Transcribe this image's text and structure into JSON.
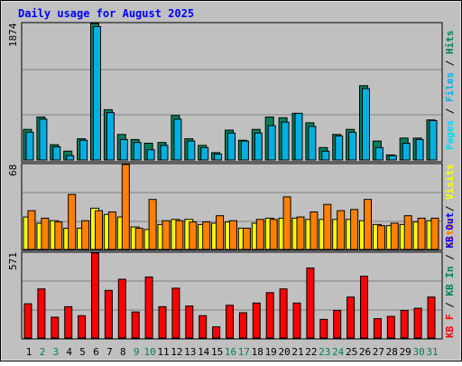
{
  "title": "Daily usage for August 2025",
  "colors": {
    "background": "#C0C0C0",
    "title": "#0000FF",
    "hits": "#00805C",
    "files": "#00B0E0",
    "pages": "#00D8F8",
    "visits": "#FFFF00",
    "sites": "#FF8000",
    "kbin": "#00805C",
    "kbout": "#0000FF",
    "kbf": "#FF0000"
  },
  "chart_data": [
    {
      "type": "bar",
      "name": "hits-files-pages",
      "categories": [
        "1",
        "2",
        "3",
        "4",
        "5",
        "6",
        "7",
        "8",
        "9",
        "10",
        "11",
        "12",
        "13",
        "14",
        "15",
        "16",
        "17",
        "18",
        "19",
        "20",
        "21",
        "22",
        "23",
        "24",
        "25",
        "26",
        "27",
        "28",
        "29",
        "30",
        "31"
      ],
      "ymax_label": "1874",
      "ylim": [
        0,
        1874
      ],
      "series": [
        {
          "name": "Hits",
          "values": [
            420,
            590,
            210,
            120,
            290,
            1874,
            690,
            350,
            280,
            230,
            240,
            610,
            290,
            200,
            100,
            410,
            270,
            420,
            590,
            580,
            640,
            510,
            170,
            350,
            420,
            1020,
            260,
            70,
            300,
            300,
            550
          ]
        },
        {
          "name": "Files",
          "values": [
            380,
            560,
            180,
            60,
            270,
            1830,
            650,
            280,
            240,
            140,
            200,
            560,
            260,
            170,
            80,
            370,
            260,
            370,
            470,
            520,
            640,
            460,
            120,
            330,
            380,
            980,
            170,
            60,
            230,
            280,
            540
          ]
        },
        {
          "name": "Pages",
          "values": [
            0,
            0,
            0,
            0,
            0,
            0,
            0,
            0,
            0,
            0,
            0,
            0,
            0,
            0,
            0,
            0,
            0,
            0,
            0,
            0,
            0,
            0,
            0,
            0,
            0,
            0,
            0,
            0,
            0,
            0,
            0
          ]
        }
      ],
      "axis_labels": [
        "Pages",
        "Files",
        "Hits"
      ]
    },
    {
      "type": "bar",
      "name": "visits-sites",
      "categories": [
        "1",
        "2",
        "3",
        "4",
        "5",
        "6",
        "7",
        "8",
        "9",
        "10",
        "11",
        "12",
        "13",
        "14",
        "15",
        "16",
        "17",
        "18",
        "19",
        "20",
        "21",
        "22",
        "23",
        "24",
        "25",
        "26",
        "27",
        "28",
        "29",
        "30",
        "31"
      ],
      "ymax_label": "68",
      "ylim": [
        0,
        68
      ],
      "series": [
        {
          "name": "Visits",
          "values": [
            26,
            21,
            23,
            17,
            17,
            33,
            28,
            26,
            18,
            16,
            20,
            24,
            24,
            20,
            21,
            22,
            17,
            21,
            25,
            25,
            25,
            24,
            24,
            24,
            24,
            23,
            20,
            19,
            20,
            22,
            23
          ]
        },
        {
          "name": "Sites",
          "values": [
            31,
            25,
            22,
            44,
            23,
            31,
            30,
            68,
            17,
            40,
            23,
            23,
            22,
            22,
            27,
            23,
            17,
            24,
            24,
            42,
            26,
            30,
            36,
            31,
            32,
            40,
            19,
            21,
            27,
            25,
            25
          ]
        }
      ],
      "axis_labels": [
        "Sites",
        "Visits"
      ]
    },
    {
      "type": "bar",
      "name": "kbytes",
      "categories": [
        "1",
        "2",
        "3",
        "4",
        "5",
        "6",
        "7",
        "8",
        "9",
        "10",
        "11",
        "12",
        "13",
        "14",
        "15",
        "16",
        "17",
        "18",
        "19",
        "20",
        "21",
        "22",
        "23",
        "24",
        "25",
        "26",
        "27",
        "28",
        "29",
        "30",
        "31"
      ],
      "ymax_label": "571",
      "ylim": [
        0,
        571
      ],
      "series": [
        {
          "name": "KB F",
          "values": [
            230,
            330,
            140,
            210,
            150,
            571,
            320,
            395,
            175,
            410,
            210,
            335,
            215,
            150,
            75,
            220,
            170,
            235,
            305,
            330,
            235,
            470,
            125,
            185,
            275,
            415,
            130,
            145,
            185,
            200,
            275
          ]
        },
        {
          "name": "KB In",
          "values": [
            0,
            0,
            0,
            0,
            0,
            0,
            0,
            0,
            0,
            0,
            0,
            0,
            0,
            0,
            0,
            0,
            0,
            0,
            0,
            0,
            0,
            0,
            0,
            0,
            0,
            0,
            0,
            0,
            0,
            0,
            0
          ]
        },
        {
          "name": "KB Out",
          "values": [
            0,
            0,
            0,
            0,
            0,
            0,
            0,
            0,
            0,
            0,
            0,
            0,
            0,
            0,
            0,
            0,
            0,
            0,
            0,
            0,
            0,
            0,
            0,
            0,
            0,
            0,
            0,
            0,
            0,
            0,
            0
          ]
        }
      ],
      "axis_labels": [
        "KB F",
        "KB In",
        "KB Out"
      ]
    }
  ],
  "x_labels": [
    "1",
    "2",
    "3",
    "4",
    "5",
    "6",
    "7",
    "8",
    "9",
    "10",
    "11",
    "12",
    "13",
    "14",
    "15",
    "16",
    "17",
    "18",
    "19",
    "20",
    "21",
    "22",
    "23",
    "24",
    "25",
    "26",
    "27",
    "28",
    "29",
    "30",
    "31"
  ],
  "weekend_days": [
    2,
    3,
    9,
    10,
    16,
    17,
    23,
    24,
    30,
    31
  ]
}
